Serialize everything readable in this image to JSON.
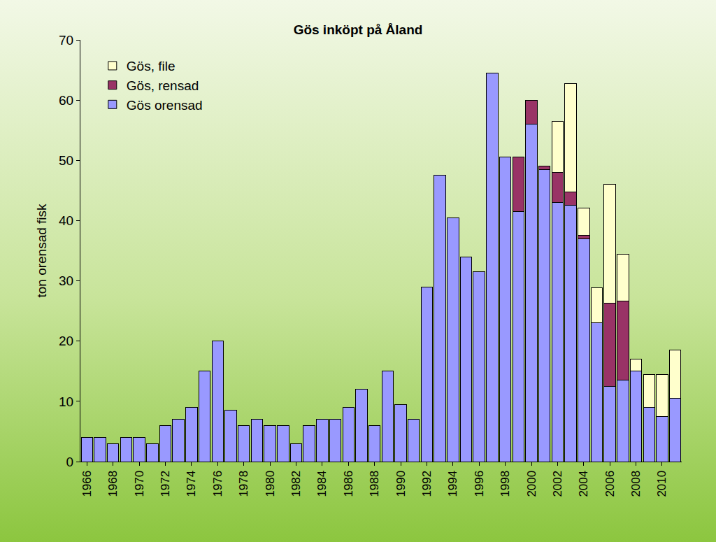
{
  "chart_data": {
    "type": "bar",
    "title": "Gös inköpt på Åland",
    "y_label": "ton orensad fisk",
    "stacked": true,
    "grid": false,
    "legend": "top-left",
    "categories": [
      "1966",
      null,
      "1968",
      null,
      "1970",
      null,
      "1972",
      null,
      "1974",
      null,
      "1976",
      null,
      "1978",
      null,
      "1980",
      null,
      "1982",
      null,
      "1984",
      null,
      "1986",
      null,
      "1988",
      null,
      "1990",
      null,
      "1992",
      null,
      "1994",
      null,
      "1996",
      null,
      "1998",
      null,
      "2000",
      null,
      "2002",
      null,
      "2004",
      null,
      "2006",
      null,
      "2008",
      null,
      "2010",
      null
    ],
    "series": [
      {
        "name": "Gös orensad",
        "color": "#9999ff",
        "values": [
          4,
          4,
          3,
          4,
          4,
          3,
          6,
          7,
          9,
          15,
          20,
          8.5,
          6,
          7,
          6,
          6,
          3,
          6,
          7,
          7,
          9,
          12,
          6,
          15,
          9.5,
          7,
          29,
          47.5,
          40.5,
          34,
          31.5,
          64.5,
          50.5,
          41.5,
          56,
          48.5,
          43,
          42.5,
          37,
          23,
          12.5,
          13.5,
          15,
          9,
          7.5,
          10.5
        ]
      },
      {
        "name": "Gös, rensad",
        "color": "#993366",
        "values": [
          null,
          null,
          null,
          null,
          null,
          null,
          null,
          null,
          null,
          null,
          null,
          null,
          null,
          null,
          null,
          null,
          null,
          null,
          null,
          null,
          null,
          null,
          null,
          null,
          null,
          null,
          null,
          null,
          null,
          null,
          null,
          null,
          null,
          9,
          4,
          0.5,
          5,
          2.3,
          0.5,
          null,
          13.8,
          13.2,
          null,
          null,
          null,
          null
        ]
      },
      {
        "name": "Gös, file",
        "color": "#ffffcc",
        "values": [
          null,
          null,
          null,
          null,
          null,
          null,
          null,
          null,
          null,
          null,
          null,
          null,
          null,
          null,
          null,
          null,
          null,
          null,
          null,
          null,
          null,
          null,
          null,
          null,
          null,
          null,
          null,
          null,
          null,
          null,
          null,
          null,
          null,
          null,
          null,
          null,
          8.5,
          18,
          4.6,
          5.8,
          19.7,
          7.7,
          2,
          5.5,
          7,
          8
        ]
      }
    ],
    "ylim": [
      0,
      70
    ],
    "yticks": [
      0,
      10,
      20,
      30,
      40,
      50,
      60,
      70
    ]
  }
}
